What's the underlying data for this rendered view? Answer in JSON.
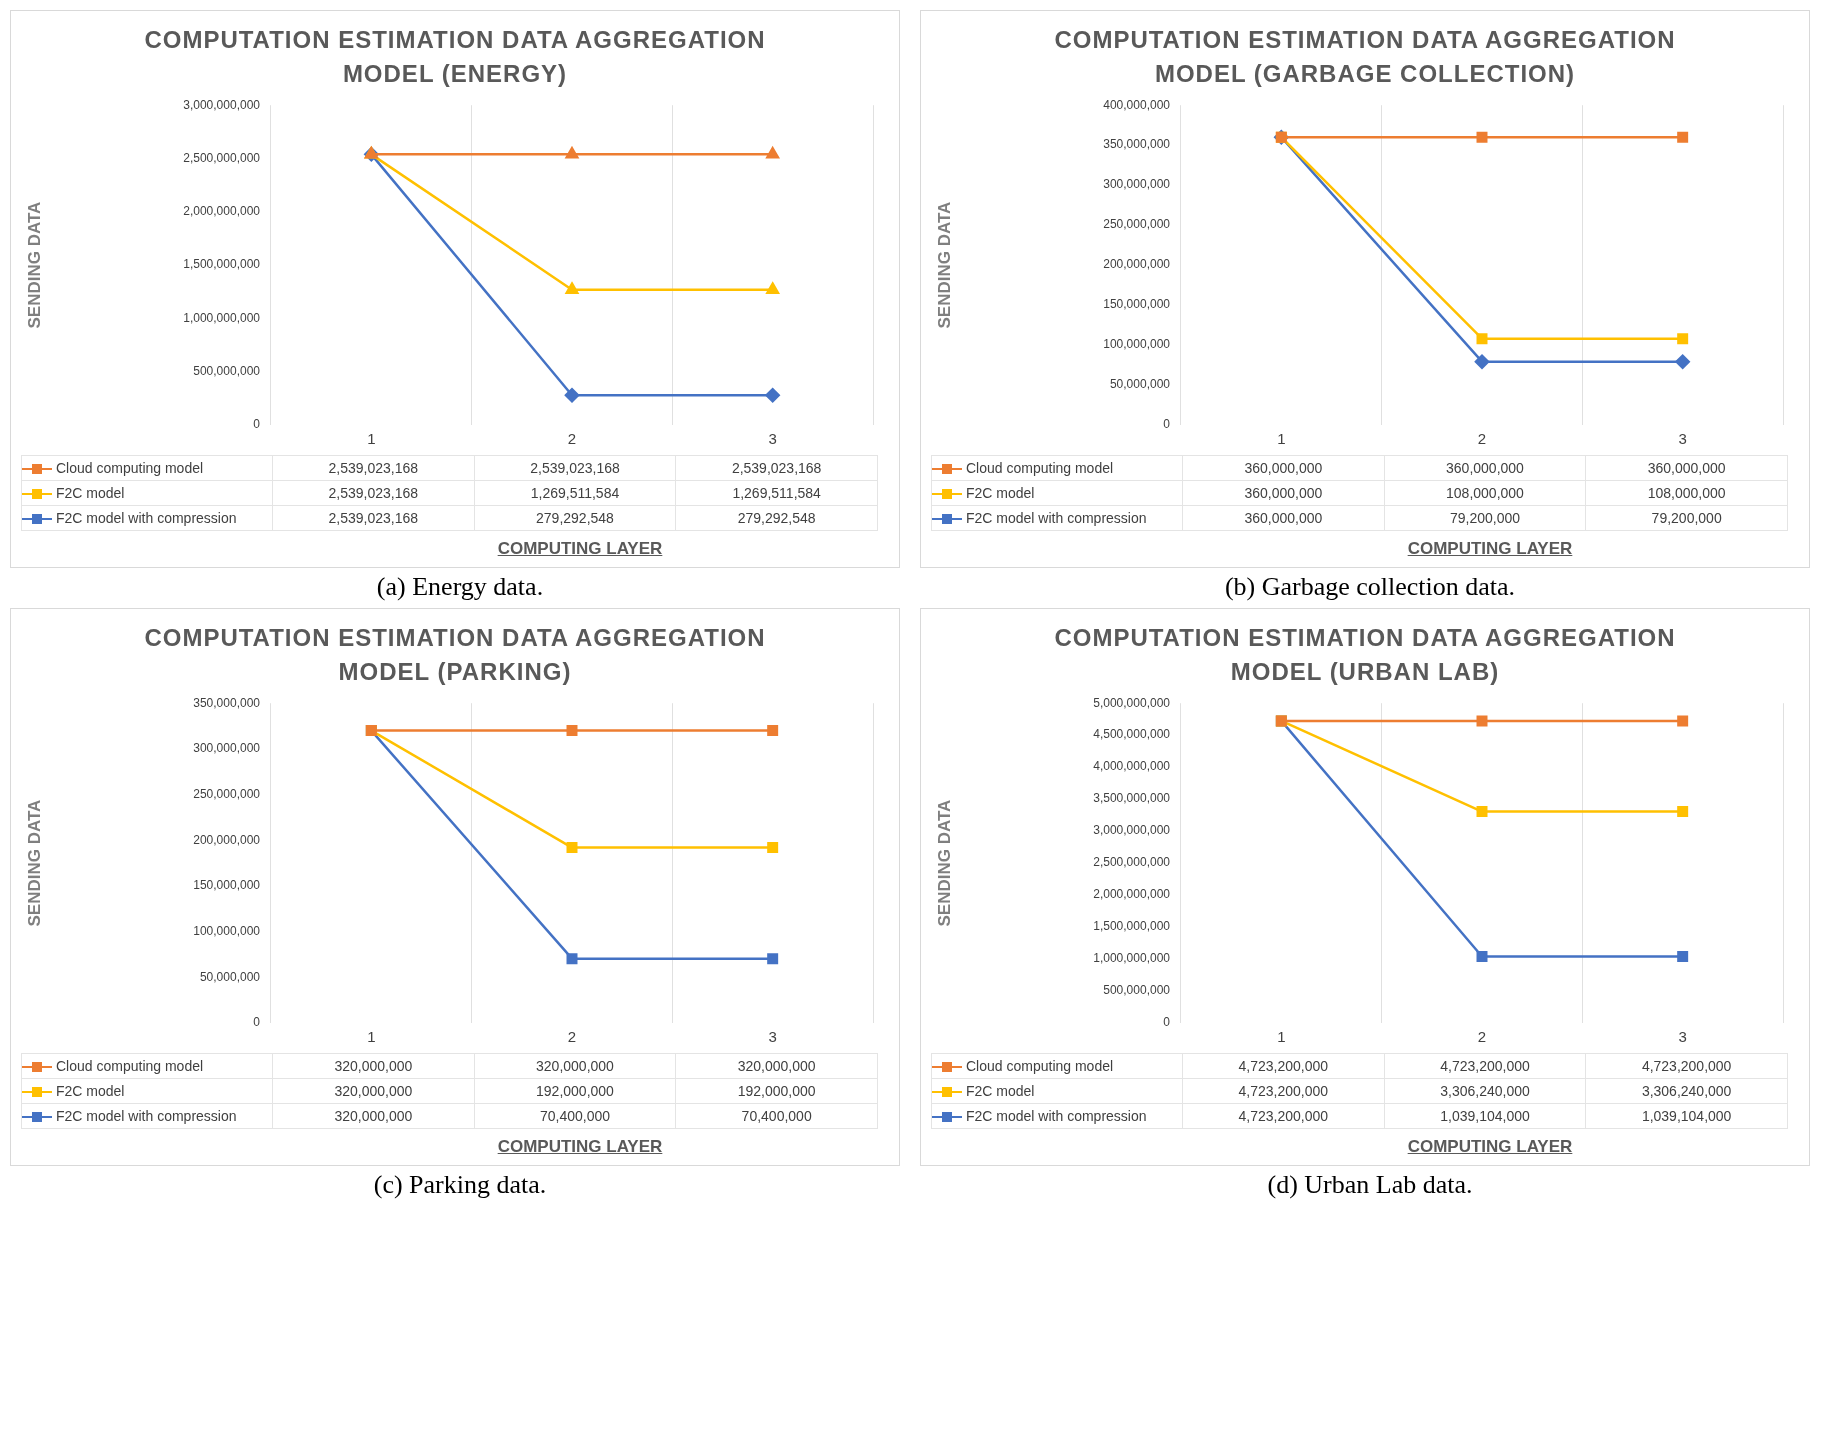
{
  "chart_data": [
    {
      "type": "line",
      "title": "COMPUTATION ESTIMATION DATA AGGREGATION MODEL (ENERGY)",
      "xlabel": "COMPUTING LAYER",
      "ylabel": "SENDING DATA",
      "categories": [
        "1",
        "2",
        "3"
      ],
      "series": [
        {
          "name": "Cloud computing model",
          "color": "#ed7d31",
          "marker": "triangle",
          "values": [
            2539023168,
            2539023168,
            2539023168
          ],
          "value_labels": [
            "2,539,023,168",
            "2,539,023,168",
            "2,539,023,168"
          ]
        },
        {
          "name": "F2C model",
          "color": "#ffc000",
          "marker": "triangle",
          "values": [
            2539023168,
            1269511584,
            1269511584
          ],
          "value_labels": [
            "2,539,023,168",
            "1,269,511,584",
            "1,269,511,584"
          ]
        },
        {
          "name": "F2C model with compression",
          "color": "#4472c4",
          "marker": "diamond",
          "values": [
            2539023168,
            279292548,
            279292548
          ],
          "value_labels": [
            "2,539,023,168",
            "279,292,548",
            "279,292,548"
          ]
        }
      ],
      "ylim": [
        0,
        3000000000
      ],
      "yticks": [
        {
          "value": 0,
          "label": "0"
        },
        {
          "value": 500000000,
          "label": "500,000,000"
        },
        {
          "value": 1000000000,
          "label": "1,000,000,000"
        },
        {
          "value": 1500000000,
          "label": "1,500,000,000"
        },
        {
          "value": 2000000000,
          "label": "2,000,000,000"
        },
        {
          "value": 2500000000,
          "label": "2,500,000,000"
        },
        {
          "value": 3000000000,
          "label": "3,000,000,000"
        }
      ],
      "grid": "x",
      "legend": "bottom",
      "annotations": [
        "(a) Energy data."
      ]
    },
    {
      "type": "line",
      "title": "COMPUTATION ESTIMATION DATA AGGREGATION MODEL (GARBAGE COLLECTION)",
      "xlabel": "COMPUTING LAYER",
      "ylabel": "SENDING DATA",
      "categories": [
        "1",
        "2",
        "3"
      ],
      "series": [
        {
          "name": "Cloud computing model",
          "color": "#ed7d31",
          "marker": "square",
          "values": [
            360000000,
            360000000,
            360000000
          ],
          "value_labels": [
            "360,000,000",
            "360,000,000",
            "360,000,000"
          ]
        },
        {
          "name": "F2C model",
          "color": "#ffc000",
          "marker": "square",
          "values": [
            360000000,
            108000000,
            108000000
          ],
          "value_labels": [
            "360,000,000",
            "108,000,000",
            "108,000,000"
          ]
        },
        {
          "name": "F2C model with compression",
          "color": "#4472c4",
          "marker": "diamond",
          "values": [
            360000000,
            79200000,
            79200000
          ],
          "value_labels": [
            "360,000,000",
            "79,200,000",
            "79,200,000"
          ]
        }
      ],
      "ylim": [
        0,
        400000000
      ],
      "yticks": [
        {
          "value": 0,
          "label": "0"
        },
        {
          "value": 50000000,
          "label": "50,000,000"
        },
        {
          "value": 100000000,
          "label": "100,000,000"
        },
        {
          "value": 150000000,
          "label": "150,000,000"
        },
        {
          "value": 200000000,
          "label": "200,000,000"
        },
        {
          "value": 250000000,
          "label": "250,000,000"
        },
        {
          "value": 300000000,
          "label": "300,000,000"
        },
        {
          "value": 350000000,
          "label": "350,000,000"
        },
        {
          "value": 400000000,
          "label": "400,000,000"
        }
      ],
      "grid": "x",
      "legend": "bottom",
      "annotations": [
        "(b) Garbage collection data."
      ]
    },
    {
      "type": "line",
      "title": "COMPUTATION ESTIMATION DATA AGGREGATION MODEL (PARKING)",
      "xlabel": "COMPUTING LAYER",
      "ylabel": "SENDING DATA",
      "categories": [
        "1",
        "2",
        "3"
      ],
      "marker": "square",
      "series": [
        {
          "name": "Cloud computing model",
          "color": "#ed7d31",
          "values": [
            320000000,
            320000000,
            320000000
          ],
          "value_labels": [
            "320,000,000",
            "320,000,000",
            "320,000,000"
          ]
        },
        {
          "name": "F2C model",
          "color": "#ffc000",
          "values": [
            320000000,
            192000000,
            192000000
          ],
          "value_labels": [
            "320,000,000",
            "192,000,000",
            "192,000,000"
          ]
        },
        {
          "name": "F2C model with compression",
          "color": "#4472c4",
          "values": [
            320000000,
            70400000,
            70400000
          ],
          "value_labels": [
            "320,000,000",
            "70,400,000",
            "70,400,000"
          ]
        }
      ],
      "ylim": [
        0,
        350000000
      ],
      "yticks": [
        {
          "value": 0,
          "label": "0"
        },
        {
          "value": 50000000,
          "label": "50,000,000"
        },
        {
          "value": 100000000,
          "label": "100,000,000"
        },
        {
          "value": 150000000,
          "label": "150,000,000"
        },
        {
          "value": 200000000,
          "label": "200,000,000"
        },
        {
          "value": 250000000,
          "label": "250,000,000"
        },
        {
          "value": 300000000,
          "label": "300,000,000"
        },
        {
          "value": 350000000,
          "label": "350,000,000"
        }
      ],
      "grid": "x",
      "legend": "bottom",
      "annotations": [
        "(c) Parking data."
      ]
    },
    {
      "type": "line",
      "title": "COMPUTATION ESTIMATION DATA AGGREGATION MODEL (URBAN LAB)",
      "xlabel": "COMPUTING LAYER",
      "ylabel": "SENDING DATA",
      "categories": [
        "1",
        "2",
        "3"
      ],
      "marker": "square",
      "series": [
        {
          "name": "Cloud computing model",
          "color": "#ed7d31",
          "values": [
            4723200000,
            4723200000,
            4723200000
          ],
          "value_labels": [
            "4,723,200,000",
            "4,723,200,000",
            "4,723,200,000"
          ]
        },
        {
          "name": "F2C model",
          "color": "#ffc000",
          "values": [
            4723200000,
            3306240000,
            3306240000
          ],
          "value_labels": [
            "4,723,200,000",
            "3,306,240,000",
            "3,306,240,000"
          ]
        },
        {
          "name": "F2C model with compression",
          "color": "#4472c4",
          "values": [
            4723200000,
            1039104000,
            1039104000
          ],
          "value_labels": [
            "4,723,200,000",
            "1,039,104,000",
            "1,039,104,000"
          ]
        }
      ],
      "ylim": [
        0,
        5000000000
      ],
      "yticks": [
        {
          "value": 0,
          "label": "0"
        },
        {
          "value": 500000000,
          "label": "500,000,000"
        },
        {
          "value": 1000000000,
          "label": "1,000,000,000"
        },
        {
          "value": 1500000000,
          "label": "1,500,000,000"
        },
        {
          "value": 2000000000,
          "label": "2,000,000,000"
        },
        {
          "value": 2500000000,
          "label": "2,500,000,000"
        },
        {
          "value": 3000000000,
          "label": "3,000,000,000"
        },
        {
          "value": 3500000000,
          "label": "3,500,000,000"
        },
        {
          "value": 4000000000,
          "label": "4,000,000,000"
        },
        {
          "value": 4500000000,
          "label": "4,500,000,000"
        },
        {
          "value": 5000000000,
          "label": "5,000,000,000"
        }
      ],
      "grid": "x",
      "legend": "bottom",
      "annotations": [
        "(d) Urban Lab data."
      ]
    }
  ]
}
